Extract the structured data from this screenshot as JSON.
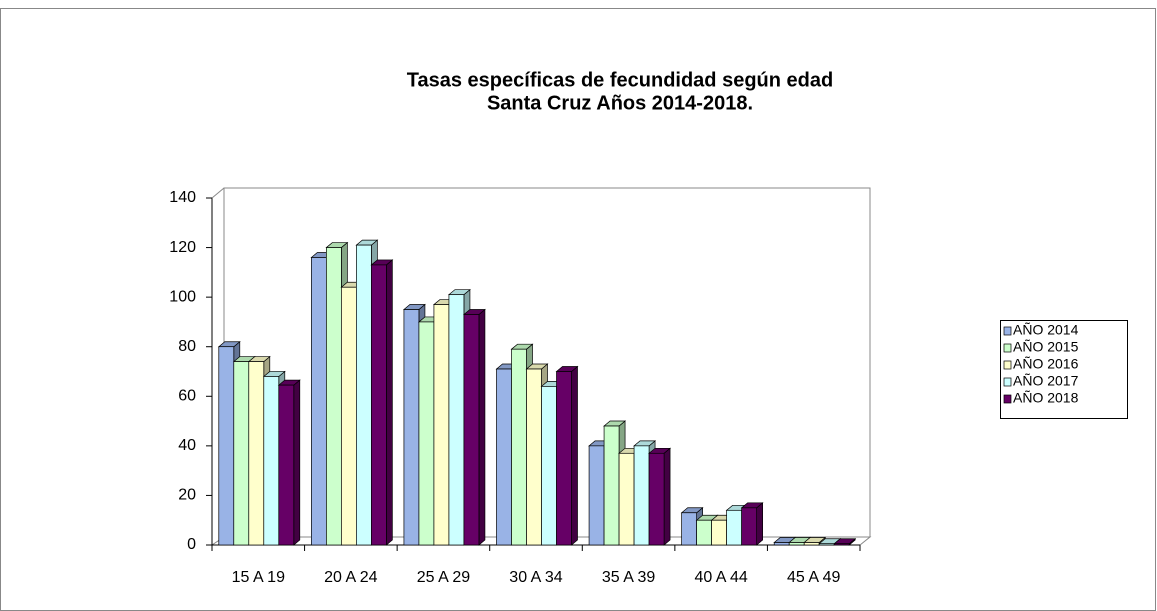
{
  "chart_data": {
    "type": "bar3d",
    "title": "Tasas específicas de fecundidad según edad",
    "subtitle": "Santa Cruz Años 2014-2018.",
    "categories": [
      "15 A 19",
      "20 A 24",
      "25 A 29",
      "30 A 34",
      "35 A 39",
      "40 A 44",
      "45 A 49"
    ],
    "series": [
      {
        "name": "AÑO 2014",
        "color": "#99b3e6",
        "values": [
          80,
          116,
          95,
          71,
          40,
          13,
          1
        ]
      },
      {
        "name": "AÑO 2015",
        "color": "#ccffcc",
        "values": [
          74,
          120,
          90,
          79,
          48,
          10,
          1
        ]
      },
      {
        "name": "AÑO 2016",
        "color": "#ffffcc",
        "values": [
          74,
          104,
          97,
          71,
          37,
          10,
          1
        ]
      },
      {
        "name": "AÑO 2017",
        "color": "#ccffff",
        "values": [
          68,
          121,
          101,
          64,
          40,
          14,
          0.5
        ]
      },
      {
        "name": "AÑO 2018",
        "color": "#660066",
        "values": [
          64.5,
          113,
          93,
          70,
          37,
          15,
          0.5
        ]
      }
    ],
    "ylim": [
      0,
      140
    ],
    "yticks": [
      0,
      20,
      40,
      60,
      80,
      100,
      120,
      140
    ],
    "grid": false,
    "legend": "right"
  }
}
